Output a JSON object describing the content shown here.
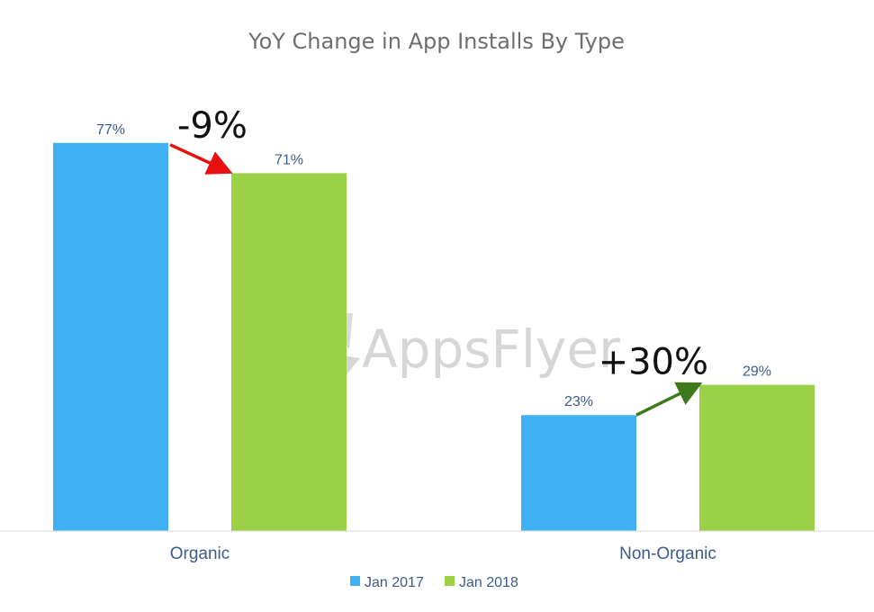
{
  "chart_data": {
    "type": "bar",
    "title": "YoY Change in App Installs By Type",
    "categories": [
      "Organic",
      "Non-Organic"
    ],
    "series": [
      {
        "name": "Jan 2017",
        "color": "#3fb1f3",
        "values": [
          77,
          23
        ],
        "labels": [
          "77%",
          "23%"
        ]
      },
      {
        "name": "Jan 2018",
        "color": "#9bd147",
        "values": [
          71,
          29
        ],
        "labels": [
          "71%",
          "29%"
        ]
      }
    ],
    "ylim": [
      0,
      100
    ],
    "grid": false,
    "legend_position": "bottom",
    "annotations": [
      {
        "text": "-9%",
        "category": "Organic",
        "color": "#e81010",
        "direction": "down"
      },
      {
        "text": "+30%",
        "category": "Non-Organic",
        "color": "#3f7a1a",
        "direction": "up"
      }
    ]
  },
  "watermark": {
    "text": "AppsFlyer",
    "icon": "appsflyer-logo-icon"
  },
  "colors": {
    "axis": "#d9d9d9",
    "text": "#3c5a8a",
    "title": "#6e6e6e"
  }
}
